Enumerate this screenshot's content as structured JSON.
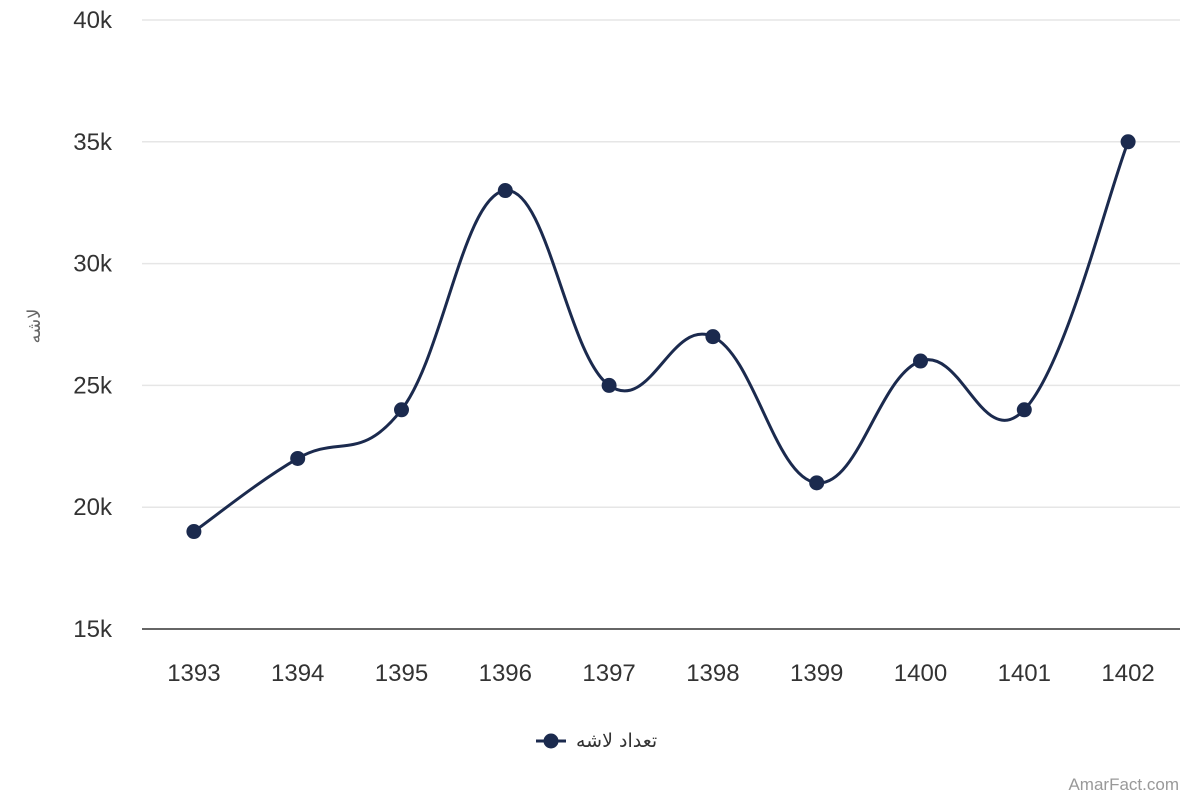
{
  "chart_data": {
    "type": "line",
    "smooth": true,
    "categories": [
      "1393",
      "1394",
      "1395",
      "1396",
      "1397",
      "1398",
      "1399",
      "1400",
      "1401",
      "1402"
    ],
    "series": [
      {
        "name": "تعداد لاشه",
        "values": [
          19000,
          22000,
          24000,
          33000,
          25000,
          27000,
          21000,
          26000,
          24000,
          35000
        ],
        "color": "#1b2a4e"
      }
    ],
    "xlabel": "",
    "ylabel": "لاشه",
    "ylim": [
      15000,
      40000
    ],
    "yticks": [
      15000,
      20000,
      25000,
      30000,
      35000,
      40000
    ],
    "ytick_labels": [
      "15k",
      "20k",
      "25k",
      "30k",
      "35k",
      "40k"
    ],
    "grid": true,
    "legend_position": "bottom-center",
    "credit": "AmarFact.com"
  }
}
